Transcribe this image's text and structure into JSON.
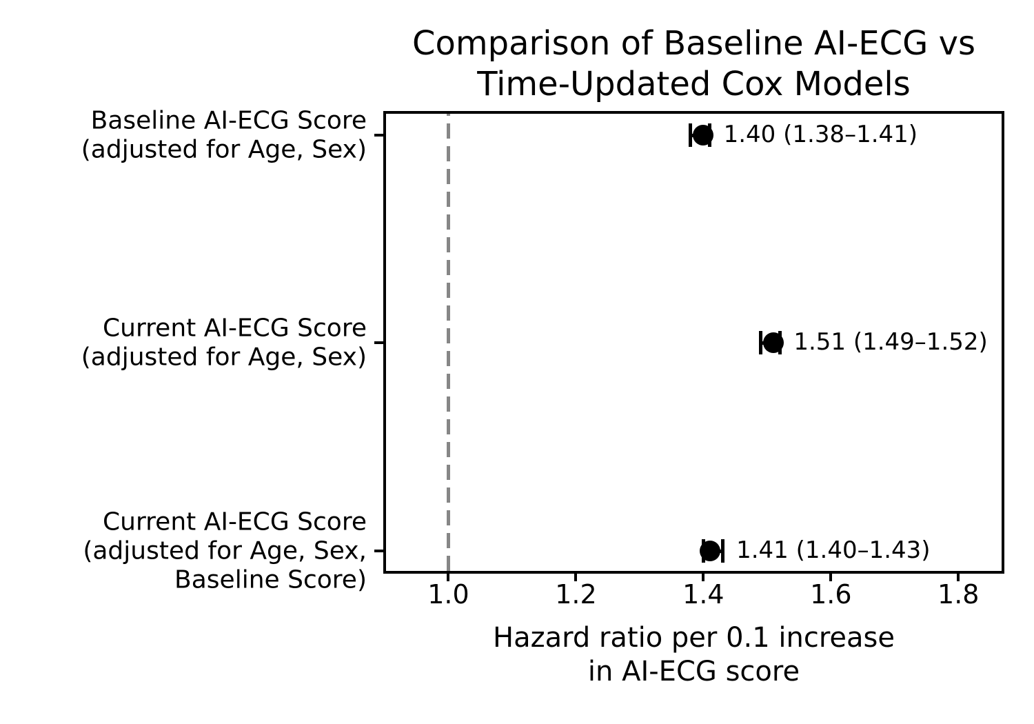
{
  "chart_data": {
    "type": "scatter",
    "subtype": "forest-plot-errorbar",
    "title": "Comparison of Baseline AI-ECG vs\nTime-Updated Cox Models",
    "xlabel": "Hazard ratio per 0.1 increase\nin AI-ECG score",
    "ylabel": "",
    "xlim": [
      0.9,
      1.87
    ],
    "grid": false,
    "legend": "none",
    "marker_color": "#000000",
    "reference_line": {
      "x": 1.0,
      "style": "dashed",
      "color": "#868686"
    },
    "xticks": [
      {
        "value": 1.0,
        "label": "1.0"
      },
      {
        "value": 1.2,
        "label": "1.2"
      },
      {
        "value": 1.4,
        "label": "1.4"
      },
      {
        "value": 1.6,
        "label": "1.6"
      },
      {
        "value": 1.8,
        "label": "1.8"
      }
    ],
    "rows": [
      {
        "label": "Baseline AI-ECG Score\n(adjusted for Age, Sex)",
        "hr": 1.4,
        "ci_low": 1.38,
        "ci_high": 1.41,
        "annotation": "1.40 (1.38–1.41)"
      },
      {
        "label": "Current AI-ECG Score\n(adjusted for Age, Sex)",
        "hr": 1.51,
        "ci_low": 1.49,
        "ci_high": 1.52,
        "annotation": "1.51 (1.49–1.52)"
      },
      {
        "label": "Current AI-ECG Score\n(adjusted for Age, Sex,\nBaseline Score)",
        "hr": 1.41,
        "ci_low": 1.4,
        "ci_high": 1.43,
        "annotation": "1.41 (1.40–1.43)"
      }
    ]
  }
}
